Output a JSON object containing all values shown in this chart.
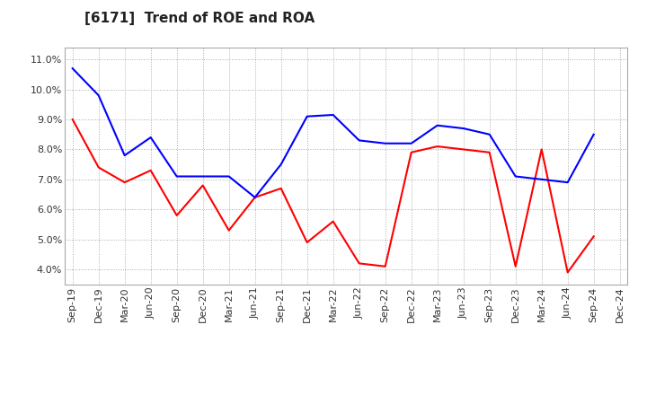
{
  "title": "[6171]  Trend of ROE and ROA",
  "labels": [
    "Sep-19",
    "Dec-19",
    "Mar-20",
    "Jun-20",
    "Sep-20",
    "Dec-20",
    "Mar-21",
    "Jun-21",
    "Sep-21",
    "Dec-21",
    "Mar-22",
    "Jun-22",
    "Sep-22",
    "Dec-22",
    "Mar-23",
    "Jun-23",
    "Sep-23",
    "Dec-23",
    "Mar-24",
    "Jun-24",
    "Sep-24",
    "Dec-24"
  ],
  "ROE": [
    9.0,
    7.4,
    6.9,
    7.3,
    5.8,
    6.8,
    5.3,
    6.4,
    6.7,
    4.9,
    5.6,
    4.2,
    4.1,
    7.9,
    8.1,
    8.0,
    7.9,
    4.1,
    8.0,
    3.9,
    5.1,
    null
  ],
  "ROA": [
    10.7,
    9.8,
    7.8,
    8.4,
    7.1,
    7.1,
    7.1,
    6.4,
    7.5,
    9.1,
    9.15,
    8.3,
    8.2,
    8.2,
    8.8,
    8.7,
    8.5,
    7.1,
    7.0,
    6.9,
    8.5,
    null
  ],
  "roe_color": "#FF0000",
  "roa_color": "#0000FF",
  "ylim_min": 3.5,
  "ylim_max": 11.4,
  "yticks": [
    4.0,
    5.0,
    6.0,
    7.0,
    8.0,
    9.0,
    10.0,
    11.0
  ],
  "bg_color": "#FFFFFF",
  "plot_bg_color": "#FFFFFF",
  "grid_color": "#AAAAAA",
  "title_fontsize": 11,
  "legend_fontsize": 9,
  "axis_fontsize": 8
}
